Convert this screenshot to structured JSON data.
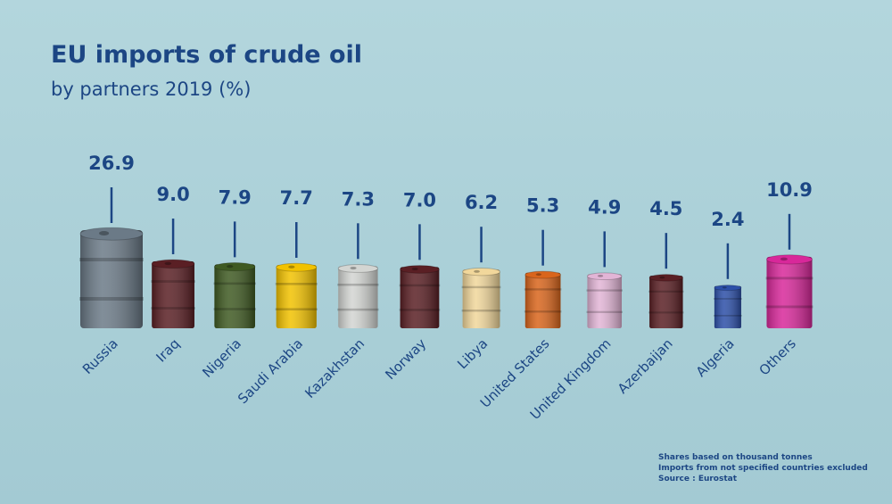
{
  "chart_data": {
    "type": "barrel",
    "title": "EU imports of crude oil",
    "subtitle": "by partners 2019 (%)",
    "categories": [
      "Russia",
      "Iraq",
      "Nigeria",
      "Saudi Arabia",
      "Kazakhstan",
      "Norway",
      "Libya",
      "United States",
      "United Kingdom",
      "Azerbaijan",
      "Algeria",
      "Others"
    ],
    "values": [
      26.9,
      9.0,
      7.9,
      7.7,
      7.3,
      7.0,
      6.2,
      5.3,
      4.9,
      4.5,
      2.4,
      10.9
    ],
    "value_labels": [
      "26.9",
      "9.0",
      "7.9",
      "7.7",
      "7.3",
      "7.0",
      "6.2",
      "5.3",
      "4.9",
      "4.5",
      "2.4",
      "10.9"
    ],
    "colors": [
      "#6b7a87",
      "#5a1f24",
      "#3f5a22",
      "#f2c200",
      "#d3d5d2",
      "#5a1f24",
      "#f1d79b",
      "#d9651c",
      "#e2b5d6",
      "#5a1f24",
      "#2c4fa8",
      "#d8289a"
    ],
    "notes": [
      "Shares based on thousand tonnes",
      "Imports from not specified countries excluded",
      "Source : Eurostat"
    ]
  }
}
